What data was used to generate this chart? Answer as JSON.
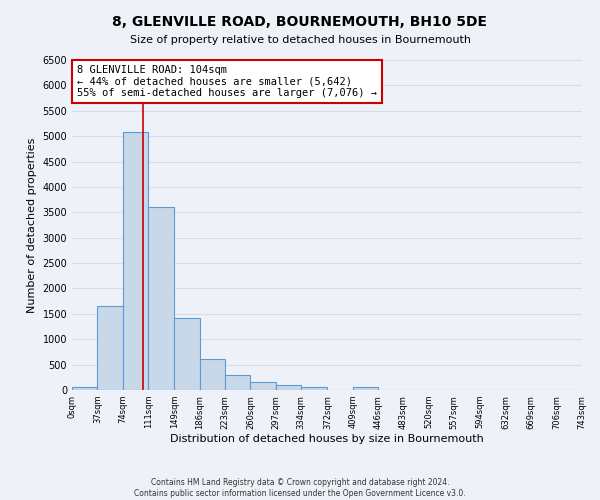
{
  "title": "8, GLENVILLE ROAD, BOURNEMOUTH, BH10 5DE",
  "subtitle": "Size of property relative to detached houses in Bournemouth",
  "xlabel": "Distribution of detached houses by size in Bournemouth",
  "ylabel": "Number of detached properties",
  "bin_edges": [
    0,
    37,
    74,
    111,
    149,
    186,
    223,
    260,
    297,
    334,
    372,
    409,
    446,
    483,
    520,
    557,
    594,
    632,
    669,
    706,
    743
  ],
  "bar_heights": [
    50,
    1650,
    5080,
    3600,
    1420,
    610,
    300,
    155,
    100,
    55,
    0,
    50,
    0,
    0,
    0,
    0,
    0,
    0,
    0,
    0
  ],
  "bar_color": "#c8d8e8",
  "bar_edge_color": "#5b9bd5",
  "bar_edge_width": 0.8,
  "property_line_x": 104,
  "property_line_color": "#cc0000",
  "annotation_text": "8 GLENVILLE ROAD: 104sqm\n← 44% of detached houses are smaller (5,642)\n55% of semi-detached houses are larger (7,076) →",
  "annotation_box_facecolor": "#ffffff",
  "annotation_box_edgecolor": "#cc0000",
  "ylim": [
    0,
    6500
  ],
  "yticks": [
    0,
    500,
    1000,
    1500,
    2000,
    2500,
    3000,
    3500,
    4000,
    4500,
    5000,
    5500,
    6000,
    6500
  ],
  "xtick_labels": [
    "0sqm",
    "37sqm",
    "74sqm",
    "111sqm",
    "149sqm",
    "186sqm",
    "223sqm",
    "260sqm",
    "297sqm",
    "334sqm",
    "372sqm",
    "409sqm",
    "446sqm",
    "483sqm",
    "520sqm",
    "557sqm",
    "594sqm",
    "632sqm",
    "669sqm",
    "706sqm",
    "743sqm"
  ],
  "grid_color": "#d0d8e8",
  "background_color": "#eef2f8",
  "footer_line1": "Contains HM Land Registry data © Crown copyright and database right 2024.",
  "footer_line2": "Contains public sector information licensed under the Open Government Licence v3.0."
}
